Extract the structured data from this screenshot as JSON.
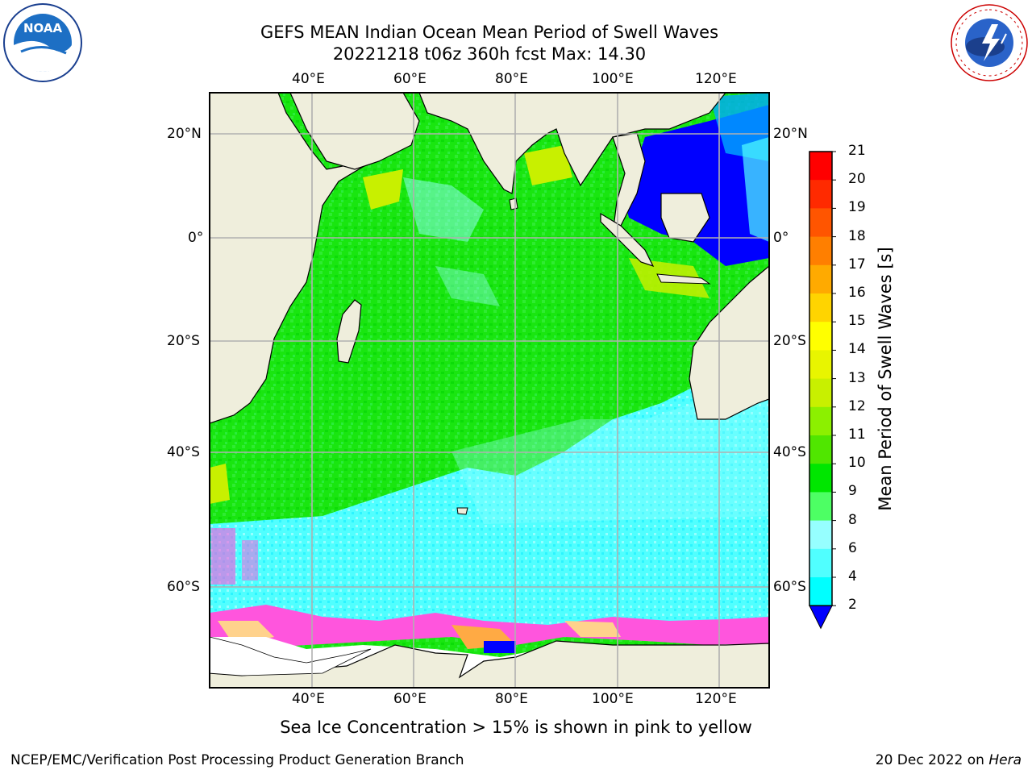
{
  "title": {
    "line1": "GEFS MEAN Indian Ocean Mean Period of Swell Waves",
    "line2": "20221218 t06z 360h fcst   Max: 14.30"
  },
  "map": {
    "lon_labels": [
      "40°E",
      "60°E",
      "80°E",
      "100°E",
      "120°E"
    ],
    "lat_labels": [
      "20°N",
      "0°",
      "20°S",
      "40°S",
      "60°S"
    ],
    "colors": {
      "land": "#efeedc",
      "coast": "#000000",
      "grid": "#b0b0b0"
    }
  },
  "colorbar": {
    "title": "Mean Period of Swell Waves [s]",
    "ticks": [
      "21",
      "20",
      "19",
      "18",
      "17",
      "16",
      "15",
      "14",
      "13",
      "12",
      "11",
      "10",
      "9",
      "8",
      "6",
      "4",
      "2"
    ],
    "colors": [
      "#ff0000",
      "#ff2a00",
      "#ff5500",
      "#ff7f00",
      "#ffaa00",
      "#ffd400",
      "#ffff00",
      "#e8f500",
      "#c8f000",
      "#8cf000",
      "#50e600",
      "#00e600",
      "#4dff64",
      "#96ffff",
      "#50ffff",
      "#00ffff",
      "#007fff",
      "#0000ff"
    ]
  },
  "caption": "Sea Ice Concentration > 15% is shown in pink to yellow",
  "footer": {
    "left": "NCEP/EMC/Verification Post Processing Product Generation Branch",
    "right_date": "20 Dec 2022 on ",
    "right_host": "Hera"
  },
  "logos": {
    "noaa": "NOAA",
    "nws_ring": "NATIONAL WEATHER SERVICE"
  }
}
